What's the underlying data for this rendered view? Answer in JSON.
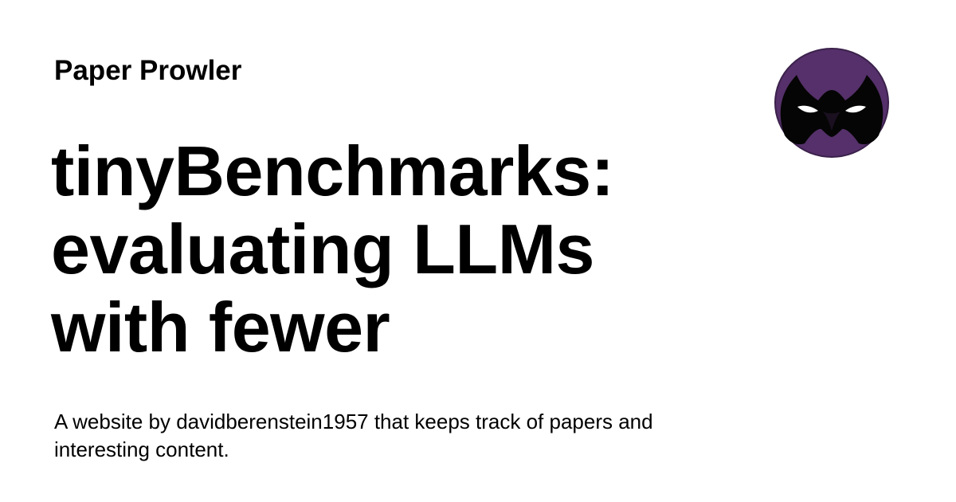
{
  "header": {
    "site_name": "Paper Prowler"
  },
  "main": {
    "title": "tinyBenchmarks: evaluating LLMs with fewer",
    "description": "A website by davidberenstein1957 that keeps track of papers and interesting content."
  },
  "logo": {
    "icon": "masked-face-icon",
    "background_color": "#55306a"
  },
  "colors": {
    "background": "#ffffff",
    "text": "#000000",
    "accent": "#55306a"
  }
}
